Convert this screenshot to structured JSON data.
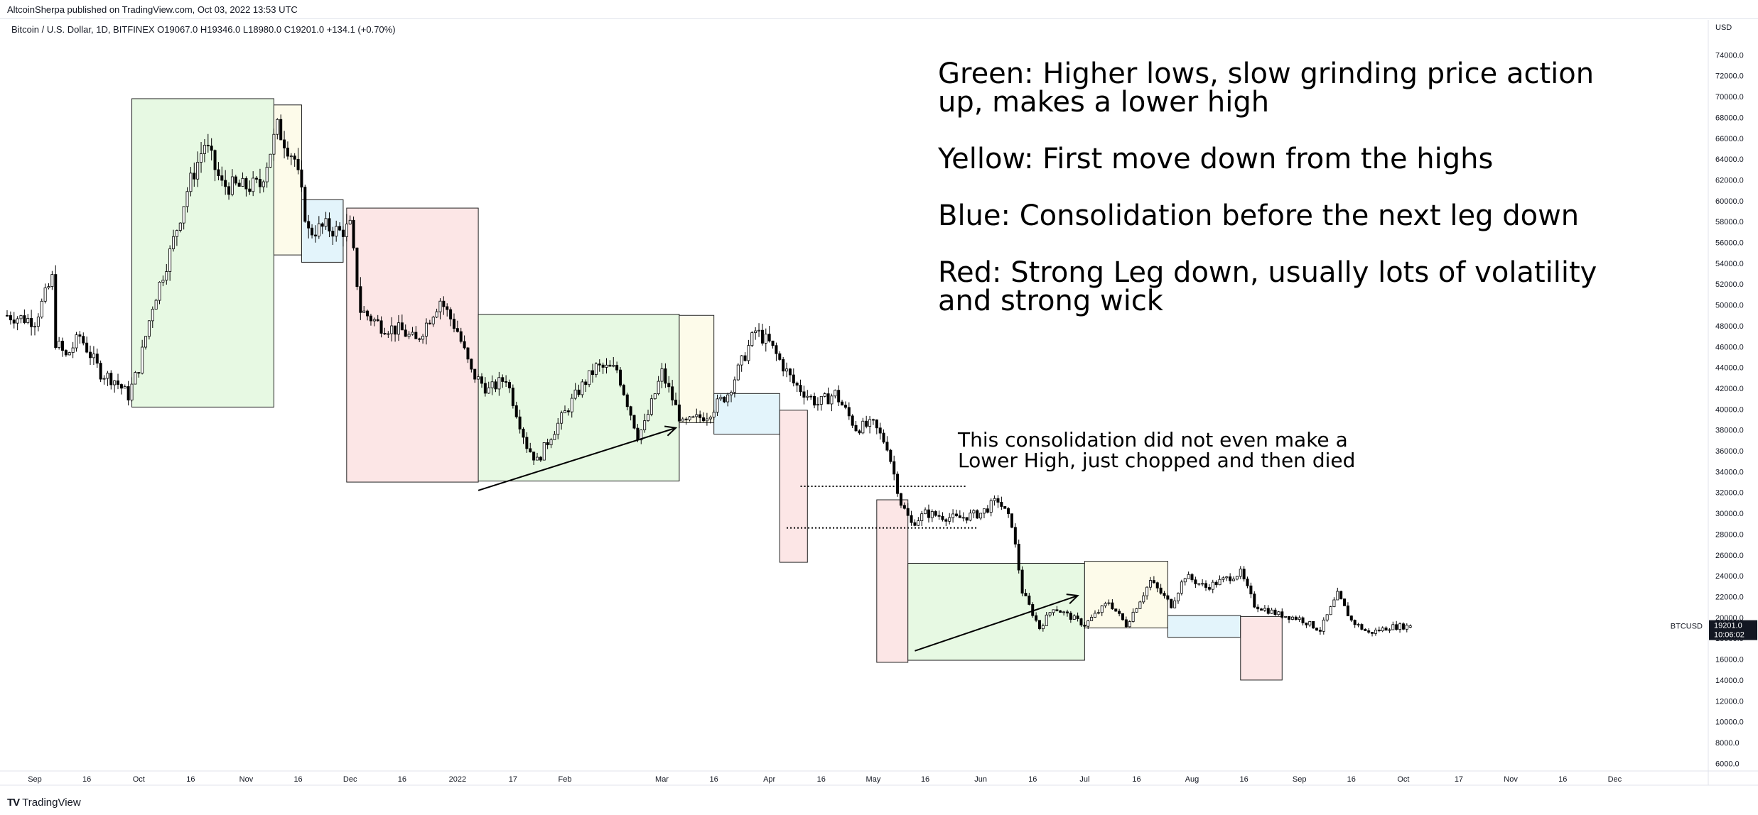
{
  "publisher_line": "AltcoinSherpa published on TradingView.com, Oct 03, 2022 13:53 UTC",
  "symbol_info": "Bitcoin / U.S. Dollar, 1D, BITFINEX  O19067.0  H19346.0  L18980.0  C19201.0  +134.1 (+0.70%)",
  "brand": {
    "logo": "TV",
    "text": "TradingView"
  },
  "annotations": {
    "legend_text": [
      [
        "Green: Higher lows, slow grinding price action",
        "up, makes a lower high"
      ],
      [
        "Yellow: First move down from the highs"
      ],
      [
        "Blue: Consolidation before the next leg down"
      ],
      [
        "Red: Strong Leg down, usually lots of volatility",
        "and strong wick"
      ]
    ],
    "consolidation_note": [
      "This consolidation did not even make a",
      "Lower High, just chopped and then died"
    ]
  },
  "colors": {
    "green_box": "#e7f9e3",
    "yellow_box": "#fdfbea",
    "blue_box": "#e3f4fb",
    "red_box": "#fce6e6",
    "candle": "#000000",
    "axis_text": "#131722",
    "grid": "#e0e3eb",
    "price_tag": "#131722"
  },
  "chart_data": {
    "type": "candlestick",
    "symbol": "BTCUSD",
    "timeframe": "1D",
    "exchange": "BITFINEX",
    "currency": "USD",
    "ohlc_last": {
      "open": 19067.0,
      "high": 19346.0,
      "low": 18980.0,
      "close": 19201.0,
      "change": 134.1,
      "change_pct": "+0.70%"
    },
    "last_price_label": "19201.0",
    "countdown_label": "10:06:02",
    "x_range": [
      "2021-08-24",
      "2022-12-28"
    ],
    "y_range": [
      5000,
      76000
    ],
    "y_ticks": [
      6000,
      8000,
      10000,
      12000,
      14000,
      16000,
      18000,
      20000,
      22000,
      24000,
      26000,
      28000,
      30000,
      32000,
      34000,
      36000,
      38000,
      40000,
      42000,
      44000,
      46000,
      48000,
      50000,
      52000,
      54000,
      56000,
      58000,
      60000,
      62000,
      64000,
      66000,
      68000,
      70000,
      72000,
      74000
    ],
    "x_ticks": [
      {
        "label": "Sep",
        "date": "2021-09-01"
      },
      {
        "label": "16",
        "date": "2021-09-16"
      },
      {
        "label": "Oct",
        "date": "2021-10-01"
      },
      {
        "label": "16",
        "date": "2021-10-16"
      },
      {
        "label": "Nov",
        "date": "2021-11-01"
      },
      {
        "label": "16",
        "date": "2021-11-16"
      },
      {
        "label": "Dec",
        "date": "2021-12-01"
      },
      {
        "label": "16",
        "date": "2021-12-16"
      },
      {
        "label": "2022",
        "date": "2022-01-01"
      },
      {
        "label": "17",
        "date": "2022-01-17"
      },
      {
        "label": "Feb",
        "date": "2022-02-01"
      },
      {
        "label": "Mar",
        "date": "2022-03-01"
      },
      {
        "label": "16",
        "date": "2022-03-16"
      },
      {
        "label": "Apr",
        "date": "2022-04-01"
      },
      {
        "label": "16",
        "date": "2022-04-16"
      },
      {
        "label": "May",
        "date": "2022-05-01"
      },
      {
        "label": "16",
        "date": "2022-05-16"
      },
      {
        "label": "Jun",
        "date": "2022-06-01"
      },
      {
        "label": "16",
        "date": "2022-06-16"
      },
      {
        "label": "Jul",
        "date": "2022-07-01"
      },
      {
        "label": "16",
        "date": "2022-07-16"
      },
      {
        "label": "Aug",
        "date": "2022-08-01"
      },
      {
        "label": "16",
        "date": "2022-08-16"
      },
      {
        "label": "Sep",
        "date": "2022-09-01"
      },
      {
        "label": "16",
        "date": "2022-09-16"
      },
      {
        "label": "Oct",
        "date": "2022-10-01"
      },
      {
        "label": "17",
        "date": "2022-10-17"
      },
      {
        "label": "Nov",
        "date": "2022-11-01"
      },
      {
        "label": "16",
        "date": "2022-11-16"
      },
      {
        "label": "Dec",
        "date": "2022-12-01"
      }
    ],
    "price_path": [
      [
        "2021-08-24",
        49000
      ],
      [
        "2021-09-01",
        48500
      ],
      [
        "2021-09-06",
        52500
      ],
      [
        "2021-09-07",
        46500
      ],
      [
        "2021-09-10",
        45000
      ],
      [
        "2021-09-14",
        47000
      ],
      [
        "2021-09-20",
        43500
      ],
      [
        "2021-09-24",
        42800
      ],
      [
        "2021-09-28",
        41300
      ],
      [
        "2021-10-01",
        44000
      ],
      [
        "2021-10-05",
        50000
      ],
      [
        "2021-10-10",
        55000
      ],
      [
        "2021-10-15",
        61000
      ],
      [
        "2021-10-20",
        65500
      ],
      [
        "2021-10-25",
        61500
      ],
      [
        "2021-10-31",
        61300
      ],
      [
        "2021-11-05",
        61500
      ],
      [
        "2021-11-10",
        67000
      ],
      [
        "2021-11-15",
        64000
      ],
      [
        "2021-11-19",
        57000
      ],
      [
        "2021-11-24",
        57500
      ],
      [
        "2021-11-28",
        57000
      ],
      [
        "2021-12-01",
        57500
      ],
      [
        "2021-12-04",
        49500
      ],
      [
        "2021-12-10",
        48000
      ],
      [
        "2021-12-16",
        47500
      ],
      [
        "2021-12-20",
        46500
      ],
      [
        "2021-12-27",
        50500
      ],
      [
        "2022-01-01",
        47500
      ],
      [
        "2022-01-05",
        43500
      ],
      [
        "2022-01-10",
        41800
      ],
      [
        "2022-01-15",
        43000
      ],
      [
        "2022-01-21",
        36500
      ],
      [
        "2022-01-24",
        35000
      ],
      [
        "2022-01-28",
        37500
      ],
      [
        "2022-02-05",
        41800
      ],
      [
        "2022-02-10",
        44000
      ],
      [
        "2022-02-16",
        43800
      ],
      [
        "2022-02-22",
        37500
      ],
      [
        "2022-02-24",
        38500
      ],
      [
        "2022-03-01",
        43500
      ],
      [
        "2022-03-07",
        38500
      ],
      [
        "2022-03-14",
        39500
      ],
      [
        "2022-03-20",
        41500
      ],
      [
        "2022-03-28",
        47500
      ],
      [
        "2022-04-01",
        46300
      ],
      [
        "2022-04-08",
        42500
      ],
      [
        "2022-04-15",
        40500
      ],
      [
        "2022-04-20",
        41500
      ],
      [
        "2022-04-26",
        38200
      ],
      [
        "2022-05-01",
        38500
      ],
      [
        "2022-05-05",
        36500
      ],
      [
        "2022-05-09",
        31000
      ],
      [
        "2022-05-12",
        29000
      ],
      [
        "2022-05-16",
        30000
      ],
      [
        "2022-05-25",
        29500
      ],
      [
        "2022-06-01",
        30000
      ],
      [
        "2022-06-06",
        31300
      ],
      [
        "2022-06-10",
        29000
      ],
      [
        "2022-06-13",
        22500
      ],
      [
        "2022-06-18",
        19000
      ],
      [
        "2022-06-22",
        21000
      ],
      [
        "2022-07-01",
        19300
      ],
      [
        "2022-07-08",
        21500
      ],
      [
        "2022-07-13",
        19300
      ],
      [
        "2022-07-20",
        23500
      ],
      [
        "2022-07-26",
        21200
      ],
      [
        "2022-07-30",
        24000
      ],
      [
        "2022-08-05",
        22900
      ],
      [
        "2022-08-15",
        24300
      ],
      [
        "2022-08-19",
        21200
      ],
      [
        "2022-08-26",
        20300
      ],
      [
        "2022-09-01",
        19900
      ],
      [
        "2022-09-07",
        18800
      ],
      [
        "2022-09-12",
        22200
      ],
      [
        "2022-09-16",
        19700
      ],
      [
        "2022-09-21",
        18500
      ],
      [
        "2022-09-27",
        19100
      ],
      [
        "2022-10-03",
        19201
      ]
    ],
    "zones": [
      {
        "color": "green",
        "start": "2021-09-29",
        "end": "2021-11-09",
        "low": 40200,
        "high": 69800
      },
      {
        "color": "yellow",
        "start": "2021-11-09",
        "end": "2021-11-17",
        "low": 54800,
        "high": 69200
      },
      {
        "color": "blue",
        "start": "2021-11-17",
        "end": "2021-11-29",
        "low": 54100,
        "high": 60100
      },
      {
        "color": "red",
        "start": "2021-11-30",
        "end": "2022-01-07",
        "low": 33000,
        "high": 59300
      },
      {
        "color": "green",
        "start": "2022-01-07",
        "end": "2022-03-06",
        "low": 33100,
        "high": 49100
      },
      {
        "color": "yellow",
        "start": "2022-03-06",
        "end": "2022-03-16",
        "low": 38700,
        "high": 49000
      },
      {
        "color": "blue",
        "start": "2022-03-16",
        "end": "2022-04-04",
        "low": 37600,
        "high": 41500
      },
      {
        "color": "red",
        "start": "2022-04-04",
        "end": "2022-04-12",
        "low": 25300,
        "high": 39900
      },
      {
        "color": "red",
        "start": "2022-05-02",
        "end": "2022-05-11",
        "low": 15700,
        "high": 31300
      },
      {
        "color": "green",
        "start": "2022-05-11",
        "end": "2022-07-01",
        "low": 15900,
        "high": 25200
      },
      {
        "color": "yellow",
        "start": "2022-07-01",
        "end": "2022-07-25",
        "low": 19000,
        "high": 25400
      },
      {
        "color": "blue",
        "start": "2022-07-25",
        "end": "2022-08-15",
        "low": 18100,
        "high": 20200
      },
      {
        "color": "red",
        "start": "2022-08-15",
        "end": "2022-08-27",
        "low": 14000,
        "high": 20100
      }
    ],
    "arrows": [
      {
        "from": [
          "2022-01-07",
          32200
        ],
        "to": [
          "2022-03-05",
          38200
        ]
      },
      {
        "from": [
          "2022-05-13",
          16800
        ],
        "to": [
          "2022-06-29",
          22100
        ]
      }
    ],
    "dotted_levels": [
      {
        "start": "2022-04-10",
        "end": "2022-05-28",
        "price": 32600
      },
      {
        "start": "2022-04-06",
        "end": "2022-05-31",
        "price": 28600
      }
    ]
  }
}
